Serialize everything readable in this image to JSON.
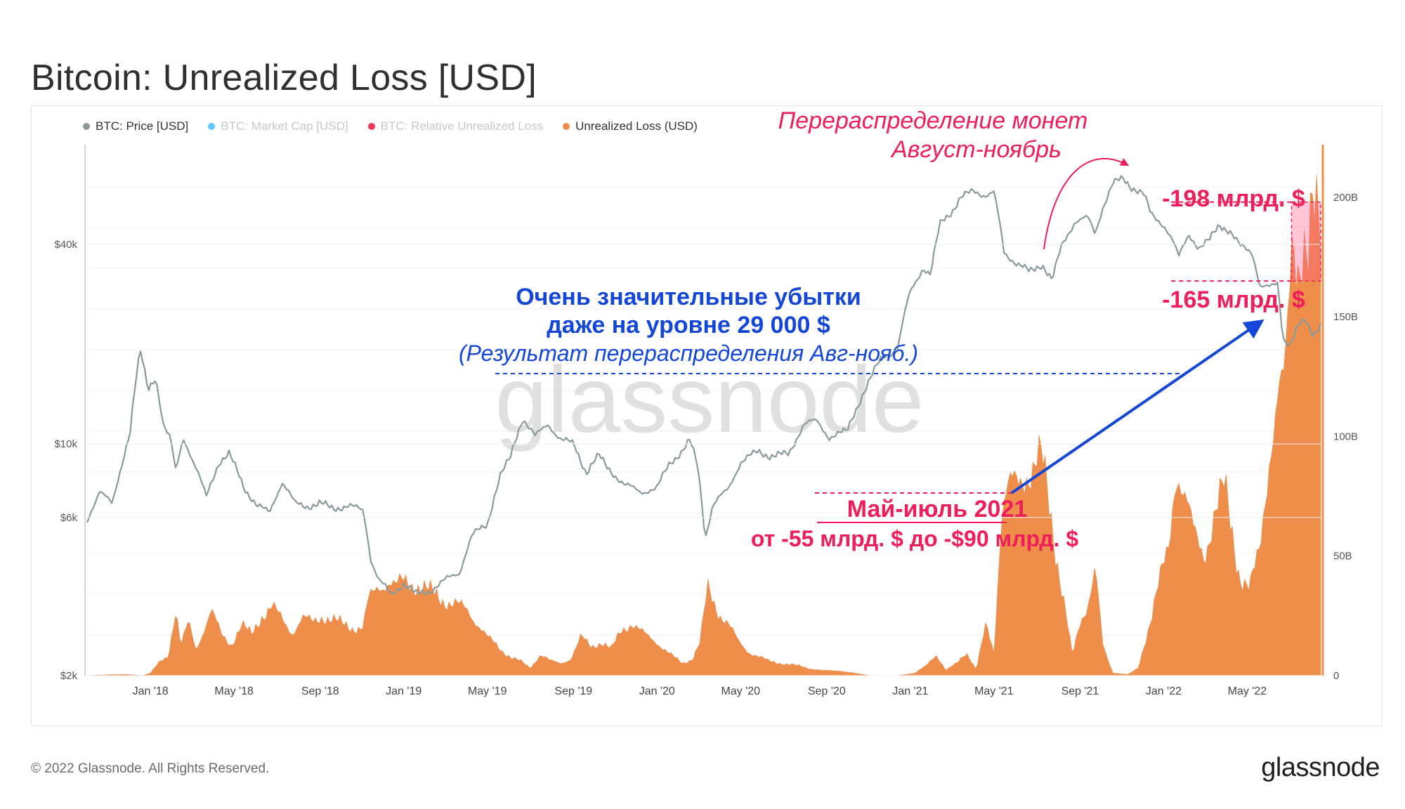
{
  "header": {
    "title": "Bitcoin: Unrealized Loss [USD]"
  },
  "legend": [
    {
      "label": "BTC: Price [USD]",
      "color": "#8a9a9b",
      "active": true
    },
    {
      "label": "BTC: Market Cap [USD]",
      "color": "#5ac8fa",
      "active": false
    },
    {
      "label": "BTC: Relative Unrealized Loss",
      "color": "#f03a5f",
      "active": false
    },
    {
      "label": "Unrealized Loss (USD)",
      "color": "#ef8d4b",
      "active": true
    }
  ],
  "annotations": {
    "redistribution_line1": "Перераспределение монет",
    "redistribution_line2": "Август-ноябрь",
    "loss_198": "-198 млрд. $",
    "loss_165": "-165 млрд. $",
    "significant_line1": "Очень значительные убытки",
    "significant_line2": "даже на уровне 29 000 $",
    "significant_line3": "(Результат перераспределения Авг-нояб.)",
    "mayjuly_line1": "Май-июль 2021",
    "mayjuly_line2": "от -55 млрд. $ до -$90 млрд. $"
  },
  "watermark": "glassnode",
  "footer": {
    "copyright": "© 2022 Glassnode. All Rights Reserved.",
    "brand": "glassnode"
  },
  "colors": {
    "price": "#8a9a9b",
    "loss": "#ef8d4b",
    "accent": "#ee1e5a",
    "blue": "#1446d8"
  },
  "chart_data": {
    "type": "line",
    "title": "Bitcoin: Unrealized Loss [USD]",
    "x_range": [
      2017.75,
      2022.62
    ],
    "x_ticks": [
      {
        "label": "Jan '18",
        "t": 2018.0
      },
      {
        "label": "May '18",
        "t": 2018.33
      },
      {
        "label": "Sep '18",
        "t": 2018.67
      },
      {
        "label": "Jan '19",
        "t": 2019.0
      },
      {
        "label": "May '19",
        "t": 2019.33
      },
      {
        "label": "Sep '19",
        "t": 2019.67
      },
      {
        "label": "Jan '20",
        "t": 2020.0
      },
      {
        "label": "May '20",
        "t": 2020.33
      },
      {
        "label": "Sep '20",
        "t": 2020.67
      },
      {
        "label": "Jan '21",
        "t": 2021.0
      },
      {
        "label": "May '21",
        "t": 2021.33
      },
      {
        "label": "Sep '21",
        "t": 2021.67
      },
      {
        "label": "Jan '22",
        "t": 2022.0
      },
      {
        "label": "May '22",
        "t": 2022.33
      }
    ],
    "y_left": {
      "scale": "log",
      "range": [
        2000,
        80000
      ],
      "ticks": [
        {
          "label": "$2k",
          "v": 2000
        },
        {
          "label": "$6k",
          "v": 6000
        },
        {
          "label": "$10k",
          "v": 10000
        },
        {
          "label": "$40k",
          "v": 40000
        }
      ]
    },
    "y_right": {
      "scale": "linear",
      "range": [
        0,
        222000000000
      ],
      "ticks": [
        {
          "label": "0",
          "v": 0
        },
        {
          "label": "50B",
          "v": 50000000000
        },
        {
          "label": "100B",
          "v": 100000000000
        },
        {
          "label": "150B",
          "v": 150000000000
        },
        {
          "label": "200B",
          "v": 200000000000
        }
      ]
    },
    "series": [
      {
        "name": "BTC: Price [USD]",
        "axis": "left",
        "points": [
          [
            2017.75,
            5800
          ],
          [
            2017.8,
            7300
          ],
          [
            2017.85,
            6500
          ],
          [
            2017.88,
            8200
          ],
          [
            2017.92,
            11000
          ],
          [
            2017.96,
            19000
          ],
          [
            2017.99,
            14500
          ],
          [
            2018.02,
            16000
          ],
          [
            2018.05,
            11500
          ],
          [
            2018.08,
            10200
          ],
          [
            2018.1,
            8200
          ],
          [
            2018.13,
            10500
          ],
          [
            2018.17,
            8800
          ],
          [
            2018.22,
            6900
          ],
          [
            2018.27,
            8800
          ],
          [
            2018.31,
            9300
          ],
          [
            2018.37,
            7400
          ],
          [
            2018.42,
            6500
          ],
          [
            2018.47,
            6200
          ],
          [
            2018.52,
            7700
          ],
          [
            2018.57,
            6600
          ],
          [
            2018.62,
            6500
          ],
          [
            2018.67,
            6600
          ],
          [
            2018.72,
            6400
          ],
          [
            2018.78,
            6500
          ],
          [
            2018.84,
            6300
          ],
          [
            2018.87,
            4500
          ],
          [
            2018.9,
            3900
          ],
          [
            2018.95,
            3500
          ],
          [
            2019.0,
            3800
          ],
          [
            2019.05,
            3500
          ],
          [
            2019.1,
            3600
          ],
          [
            2019.17,
            3900
          ],
          [
            2019.22,
            4100
          ],
          [
            2019.27,
            5300
          ],
          [
            2019.33,
            5700
          ],
          [
            2019.38,
            8000
          ],
          [
            2019.42,
            9000
          ],
          [
            2019.47,
            12000
          ],
          [
            2019.52,
            10500
          ],
          [
            2019.57,
            11500
          ],
          [
            2019.62,
            10300
          ],
          [
            2019.67,
            10000
          ],
          [
            2019.72,
            8200
          ],
          [
            2019.77,
            9200
          ],
          [
            2019.8,
            8600
          ],
          [
            2019.87,
            7500
          ],
          [
            2019.94,
            7200
          ],
          [
            2020.0,
            7300
          ],
          [
            2020.05,
            8800
          ],
          [
            2020.1,
            9500
          ],
          [
            2020.13,
            10200
          ],
          [
            2020.16,
            8600
          ],
          [
            2020.19,
            5200
          ],
          [
            2020.22,
            6500
          ],
          [
            2020.28,
            7300
          ],
          [
            2020.33,
            8800
          ],
          [
            2020.4,
            9500
          ],
          [
            2020.45,
            9200
          ],
          [
            2020.52,
            9300
          ],
          [
            2020.58,
            11500
          ],
          [
            2020.63,
            11700
          ],
          [
            2020.68,
            10500
          ],
          [
            2020.75,
            10900
          ],
          [
            2020.79,
            13000
          ],
          [
            2020.84,
            15500
          ],
          [
            2020.89,
            18500
          ],
          [
            2020.95,
            19100
          ],
          [
            2021.0,
            29000
          ],
          [
            2021.05,
            34000
          ],
          [
            2021.08,
            32000
          ],
          [
            2021.12,
            47000
          ],
          [
            2021.17,
            51000
          ],
          [
            2021.2,
            55000
          ],
          [
            2021.25,
            58500
          ],
          [
            2021.3,
            56000
          ],
          [
            2021.33,
            57000
          ],
          [
            2021.37,
            38000
          ],
          [
            2021.42,
            35000
          ],
          [
            2021.47,
            33000
          ],
          [
            2021.52,
            35000
          ],
          [
            2021.56,
            31000
          ],
          [
            2021.6,
            40000
          ],
          [
            2021.65,
            47000
          ],
          [
            2021.7,
            48000
          ],
          [
            2021.73,
            43000
          ],
          [
            2021.76,
            52000
          ],
          [
            2021.8,
            61000
          ],
          [
            2021.84,
            63000
          ],
          [
            2021.87,
            60000
          ],
          [
            2021.92,
            57000
          ],
          [
            2021.95,
            49000
          ],
          [
            2022.0,
            46000
          ],
          [
            2022.03,
            42000
          ],
          [
            2022.06,
            36500
          ],
          [
            2022.1,
            43000
          ],
          [
            2022.14,
            39000
          ],
          [
            2022.18,
            41000
          ],
          [
            2022.22,
            46000
          ],
          [
            2022.26,
            44000
          ],
          [
            2022.3,
            39500
          ],
          [
            2022.35,
            38000
          ],
          [
            2022.38,
            30000
          ],
          [
            2022.42,
            29500
          ],
          [
            2022.45,
            30500
          ],
          [
            2022.47,
            21000
          ],
          [
            2022.5,
            20000
          ],
          [
            2022.53,
            22500
          ],
          [
            2022.56,
            23500
          ],
          [
            2022.59,
            21500
          ],
          [
            2022.62,
            23000
          ]
        ]
      },
      {
        "name": "Unrealized Loss (USD)",
        "axis": "right",
        "points": [
          [
            2017.75,
            0
          ],
          [
            2017.82,
            300000000.0
          ],
          [
            2017.9,
            500000000.0
          ],
          [
            2017.97,
            0
          ],
          [
            2018.0,
            1000000000.0
          ],
          [
            2018.04,
            6000000000.0
          ],
          [
            2018.07,
            8000000000.0
          ],
          [
            2018.1,
            28000000000.0
          ],
          [
            2018.12,
            12000000000.0
          ],
          [
            2018.15,
            22000000000.0
          ],
          [
            2018.18,
            11000000000.0
          ],
          [
            2018.21,
            19000000000.0
          ],
          [
            2018.24,
            27000000000.0
          ],
          [
            2018.28,
            17000000000.0
          ],
          [
            2018.32,
            13000000000.0
          ],
          [
            2018.36,
            21000000000.0
          ],
          [
            2018.4,
            17000000000.0
          ],
          [
            2018.44,
            25000000000.0
          ],
          [
            2018.48,
            29000000000.0
          ],
          [
            2018.52,
            23000000000.0
          ],
          [
            2018.56,
            18000000000.0
          ],
          [
            2018.6,
            24000000000.0
          ],
          [
            2018.64,
            22000000000.0
          ],
          [
            2018.68,
            25000000000.0
          ],
          [
            2018.72,
            23000000000.0
          ],
          [
            2018.77,
            21000000000.0
          ],
          [
            2018.8,
            20000000000.0
          ],
          [
            2018.84,
            20000000000.0
          ],
          [
            2018.86,
            31000000000.0
          ],
          [
            2018.9,
            37000000000.0
          ],
          [
            2018.94,
            40000000000.0
          ],
          [
            2018.97,
            37000000000.0
          ],
          [
            2019.0,
            39000000000.0
          ],
          [
            2019.05,
            38000000000.0
          ],
          [
            2019.1,
            35000000000.0
          ],
          [
            2019.15,
            32000000000.0
          ],
          [
            2019.2,
            30000000000.0
          ],
          [
            2019.25,
            27000000000.0
          ],
          [
            2019.3,
            21000000000.0
          ],
          [
            2019.33,
            16000000000.0
          ],
          [
            2019.38,
            11000000000.0
          ],
          [
            2019.42,
            8000000000.0
          ],
          [
            2019.46,
            6000000000.0
          ],
          [
            2019.5,
            3000000000.0
          ],
          [
            2019.54,
            9000000000.0
          ],
          [
            2019.58,
            6000000000.0
          ],
          [
            2019.62,
            5000000000.0
          ],
          [
            2019.66,
            7000000000.0
          ],
          [
            2019.7,
            16000000000.0
          ],
          [
            2019.74,
            12000000000.0
          ],
          [
            2019.78,
            14000000000.0
          ],
          [
            2019.82,
            11000000000.0
          ],
          [
            2019.86,
            19000000000.0
          ],
          [
            2019.9,
            22000000000.0
          ],
          [
            2019.95,
            17000000000.0
          ],
          [
            2020.0,
            14000000000.0
          ],
          [
            2020.05,
            9000000000.0
          ],
          [
            2020.1,
            5000000000.0
          ],
          [
            2020.14,
            7000000000.0
          ],
          [
            2020.17,
            14000000000.0
          ],
          [
            2020.2,
            36000000000.0
          ],
          [
            2020.24,
            27000000000.0
          ],
          [
            2020.28,
            22000000000.0
          ],
          [
            2020.32,
            14000000000.0
          ],
          [
            2020.36,
            10000000000.0
          ],
          [
            2020.4,
            8000000000.0
          ],
          [
            2020.44,
            6000000000.0
          ],
          [
            2020.5,
            5000000000.0
          ],
          [
            2020.56,
            4000000000.0
          ],
          [
            2020.6,
            3000000000.0
          ],
          [
            2020.66,
            2000000000.0
          ],
          [
            2020.72,
            2000000000.0
          ],
          [
            2020.78,
            1000000000.0
          ],
          [
            2020.84,
            0
          ],
          [
            2020.95,
            0
          ],
          [
            2021.02,
            1000000000.0
          ],
          [
            2021.06,
            4000000000.0
          ],
          [
            2021.1,
            9000000000.0
          ],
          [
            2021.14,
            2000000000.0
          ],
          [
            2021.18,
            5000000000.0
          ],
          [
            2021.22,
            10000000000.0
          ],
          [
            2021.26,
            2000000000.0
          ],
          [
            2021.3,
            22000000000.0
          ],
          [
            2021.33,
            10000000000.0
          ],
          [
            2021.36,
            66000000000.0
          ],
          [
            2021.39,
            77000000000.0
          ],
          [
            2021.42,
            82000000000.0
          ],
          [
            2021.45,
            86000000000.0
          ],
          [
            2021.48,
            84000000000.0
          ],
          [
            2021.52,
            90000000000.0
          ],
          [
            2021.55,
            72000000000.0
          ],
          [
            2021.58,
            48000000000.0
          ],
          [
            2021.61,
            28000000000.0
          ],
          [
            2021.64,
            8000000000.0
          ],
          [
            2021.67,
            22000000000.0
          ],
          [
            2021.7,
            30000000000.0
          ],
          [
            2021.73,
            45000000000.0
          ],
          [
            2021.76,
            12000000000.0
          ],
          [
            2021.8,
            1000000000.0
          ],
          [
            2021.86,
            500000000.0
          ],
          [
            2021.9,
            3000000000.0
          ],
          [
            2021.94,
            20000000000.0
          ],
          [
            2021.98,
            38000000000.0
          ],
          [
            2022.02,
            52000000000.0
          ],
          [
            2022.05,
            88000000000.0
          ],
          [
            2022.08,
            78000000000.0
          ],
          [
            2022.12,
            58000000000.0
          ],
          [
            2022.16,
            50000000000.0
          ],
          [
            2022.2,
            68000000000.0
          ],
          [
            2022.24,
            78000000000.0
          ],
          [
            2022.27,
            60000000000.0
          ],
          [
            2022.3,
            42000000000.0
          ],
          [
            2022.34,
            36000000000.0
          ],
          [
            2022.38,
            52000000000.0
          ],
          [
            2022.42,
            96000000000.0
          ],
          [
            2022.45,
            116000000000.0
          ],
          [
            2022.48,
            122000000000.0
          ],
          [
            2022.51,
            185000000000.0
          ],
          [
            2022.53,
            176000000000.0
          ],
          [
            2022.55,
            188000000000.0
          ],
          [
            2022.57,
            175000000000.0
          ],
          [
            2022.59,
            190000000000.0
          ],
          [
            2022.61,
            180000000000.0
          ],
          [
            2022.62,
            183000000000.0
          ]
        ]
      }
    ],
    "highlight": {
      "name": "loss-range",
      "y_from": 165000000000,
      "y_to": 198000000000
    }
  }
}
